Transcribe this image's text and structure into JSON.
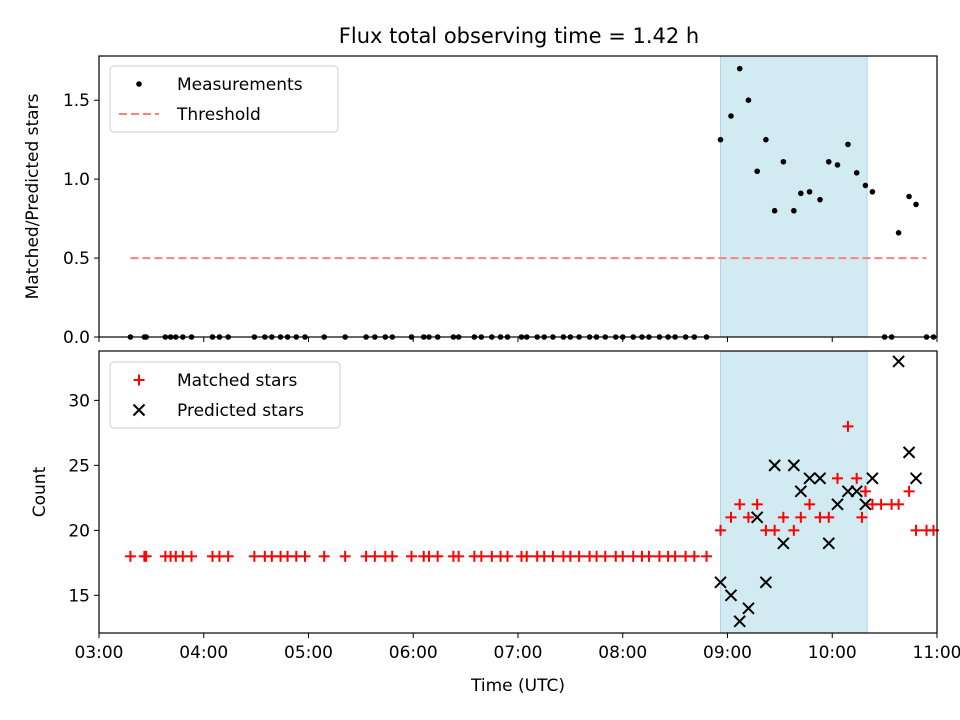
{
  "title": "Flux total observing time = 1.42 h",
  "colors": {
    "shade": "#add8e6",
    "measure": "#000000",
    "threshold": "#ff7f7f",
    "matched": "#ff0000",
    "predicted": "#000000"
  },
  "chart_data": [
    {
      "type": "scatter",
      "ylabel": "Matched/Predicted stars",
      "xlim": [
        "03:00",
        "11:00"
      ],
      "ylim": [
        0,
        1.78
      ],
      "yticks": [
        "0.0",
        "0.5",
        "1.0",
        "1.5"
      ],
      "shaded_span": [
        "08:56",
        "10:20"
      ],
      "legend": {
        "placement": "upper left",
        "entries": [
          "Measurements",
          "Threshold"
        ]
      },
      "series": [
        {
          "name": "Measurements",
          "marker": "dot",
          "points": [
            [
              "03:18",
              0
            ],
            [
              "03:26",
              0
            ],
            [
              "03:27",
              0
            ],
            [
              "03:38",
              0
            ],
            [
              "03:41",
              0
            ],
            [
              "03:44",
              0
            ],
            [
              "03:48",
              0
            ],
            [
              "03:53",
              0
            ],
            [
              "04:05",
              0
            ],
            [
              "04:09",
              0
            ],
            [
              "04:14",
              0
            ],
            [
              "04:29",
              0
            ],
            [
              "04:35",
              0
            ],
            [
              "04:39",
              0
            ],
            [
              "04:44",
              0
            ],
            [
              "04:48",
              0
            ],
            [
              "04:53",
              0
            ],
            [
              "04:58",
              0
            ],
            [
              "05:09",
              0
            ],
            [
              "05:21",
              0
            ],
            [
              "05:33",
              0
            ],
            [
              "05:38",
              0
            ],
            [
              "05:44",
              0
            ],
            [
              "05:48",
              0
            ],
            [
              "05:59",
              0
            ],
            [
              "06:06",
              0
            ],
            [
              "06:09",
              0
            ],
            [
              "06:14",
              0
            ],
            [
              "06:23",
              0
            ],
            [
              "06:26",
              0
            ],
            [
              "06:35",
              0
            ],
            [
              "06:39",
              0
            ],
            [
              "06:45",
              0
            ],
            [
              "06:50",
              0
            ],
            [
              "06:54",
              0
            ],
            [
              "07:02",
              0
            ],
            [
              "07:05",
              0
            ],
            [
              "07:11",
              0
            ],
            [
              "07:15",
              0
            ],
            [
              "07:20",
              0
            ],
            [
              "07:26",
              0
            ],
            [
              "07:30",
              0
            ],
            [
              "07:35",
              0
            ],
            [
              "07:41",
              0
            ],
            [
              "07:45",
              0
            ],
            [
              "07:50",
              0
            ],
            [
              "07:56",
              0
            ],
            [
              "08:00",
              0
            ],
            [
              "08:06",
              0
            ],
            [
              "08:11",
              0
            ],
            [
              "08:15",
              0
            ],
            [
              "08:21",
              0
            ],
            [
              "08:26",
              0
            ],
            [
              "08:30",
              0
            ],
            [
              "08:36",
              0
            ],
            [
              "08:41",
              0
            ],
            [
              "08:48",
              0
            ],
            [
              "08:56",
              1.25
            ],
            [
              "09:02",
              1.4
            ],
            [
              "09:07",
              1.7
            ],
            [
              "09:12",
              1.5
            ],
            [
              "09:17",
              1.05
            ],
            [
              "09:22",
              1.25
            ],
            [
              "09:27",
              0.8
            ],
            [
              "09:32",
              1.11
            ],
            [
              "09:38",
              0.8
            ],
            [
              "09:42",
              0.91
            ],
            [
              "09:47",
              0.92
            ],
            [
              "09:53",
              0.87
            ],
            [
              "09:58",
              1.11
            ],
            [
              "10:03",
              1.09
            ],
            [
              "10:09",
              1.22
            ],
            [
              "10:14",
              1.04
            ],
            [
              "10:19",
              0.96
            ],
            [
              "10:23",
              0.92
            ],
            [
              "10:30",
              0
            ],
            [
              "10:34",
              0
            ],
            [
              "10:38",
              0.66
            ],
            [
              "10:44",
              0.89
            ],
            [
              "10:48",
              0.84
            ],
            [
              "10:54",
              0
            ],
            [
              "10:58",
              0
            ]
          ]
        },
        {
          "name": "Threshold",
          "style": "dashed",
          "y": 0.5,
          "x": [
            "03:18",
            "10:54"
          ]
        }
      ]
    },
    {
      "type": "scatter",
      "xlabel": "Time (UTC)",
      "ylabel": "Count",
      "xlim": [
        "03:00",
        "11:00"
      ],
      "ylim": [
        12.1,
        33.8
      ],
      "yticks": [
        "15",
        "20",
        "25",
        "30"
      ],
      "xticks": [
        "03:00",
        "04:00",
        "05:00",
        "06:00",
        "07:00",
        "08:00",
        "09:00",
        "10:00",
        "11:00"
      ],
      "shaded_span": [
        "08:56",
        "10:20"
      ],
      "legend": {
        "placement": "upper left",
        "entries": [
          "Matched stars",
          "Predicted stars"
        ]
      },
      "series": [
        {
          "name": "Matched stars",
          "marker": "plus",
          "points": [
            [
              "03:18",
              18
            ],
            [
              "03:26",
              18
            ],
            [
              "03:27",
              18
            ],
            [
              "03:38",
              18
            ],
            [
              "03:41",
              18
            ],
            [
              "03:44",
              18
            ],
            [
              "03:48",
              18
            ],
            [
              "03:53",
              18
            ],
            [
              "04:05",
              18
            ],
            [
              "04:09",
              18
            ],
            [
              "04:14",
              18
            ],
            [
              "04:29",
              18
            ],
            [
              "04:35",
              18
            ],
            [
              "04:39",
              18
            ],
            [
              "04:44",
              18
            ],
            [
              "04:48",
              18
            ],
            [
              "04:53",
              18
            ],
            [
              "04:58",
              18
            ],
            [
              "05:09",
              18
            ],
            [
              "05:21",
              18
            ],
            [
              "05:33",
              18
            ],
            [
              "05:38",
              18
            ],
            [
              "05:44",
              18
            ],
            [
              "05:48",
              18
            ],
            [
              "05:59",
              18
            ],
            [
              "06:06",
              18
            ],
            [
              "06:09",
              18
            ],
            [
              "06:14",
              18
            ],
            [
              "06:23",
              18
            ],
            [
              "06:26",
              18
            ],
            [
              "06:35",
              18
            ],
            [
              "06:39",
              18
            ],
            [
              "06:45",
              18
            ],
            [
              "06:50",
              18
            ],
            [
              "06:54",
              18
            ],
            [
              "07:02",
              18
            ],
            [
              "07:05",
              18
            ],
            [
              "07:11",
              18
            ],
            [
              "07:15",
              18
            ],
            [
              "07:20",
              18
            ],
            [
              "07:26",
              18
            ],
            [
              "07:30",
              18
            ],
            [
              "07:35",
              18
            ],
            [
              "07:41",
              18
            ],
            [
              "07:45",
              18
            ],
            [
              "07:50",
              18
            ],
            [
              "07:56",
              18
            ],
            [
              "08:00",
              18
            ],
            [
              "08:06",
              18
            ],
            [
              "08:11",
              18
            ],
            [
              "08:15",
              18
            ],
            [
              "08:21",
              18
            ],
            [
              "08:26",
              18
            ],
            [
              "08:30",
              18
            ],
            [
              "08:36",
              18
            ],
            [
              "08:41",
              18
            ],
            [
              "08:48",
              18
            ],
            [
              "08:56",
              20
            ],
            [
              "09:02",
              21
            ],
            [
              "09:07",
              22
            ],
            [
              "09:12",
              21
            ],
            [
              "09:17",
              22
            ],
            [
              "09:22",
              20
            ],
            [
              "09:27",
              20
            ],
            [
              "09:32",
              21
            ],
            [
              "09:38",
              20
            ],
            [
              "09:42",
              21
            ],
            [
              "09:47",
              22
            ],
            [
              "09:53",
              21
            ],
            [
              "09:58",
              21
            ],
            [
              "10:03",
              24
            ],
            [
              "10:09",
              28
            ],
            [
              "10:14",
              24
            ],
            [
              "10:17",
              21
            ],
            [
              "10:19",
              23
            ],
            [
              "10:23",
              22
            ],
            [
              "10:28",
              22
            ],
            [
              "10:34",
              22
            ],
            [
              "10:38",
              22
            ],
            [
              "10:44",
              23
            ],
            [
              "10:48",
              20
            ],
            [
              "10:54",
              20
            ],
            [
              "10:58",
              20
            ]
          ]
        },
        {
          "name": "Predicted stars",
          "marker": "x",
          "points": [
            [
              "08:56",
              16
            ],
            [
              "09:02",
              15
            ],
            [
              "09:07",
              13
            ],
            [
              "09:12",
              14
            ],
            [
              "09:17",
              21
            ],
            [
              "09:22",
              16
            ],
            [
              "09:27",
              25
            ],
            [
              "09:32",
              19
            ],
            [
              "09:38",
              25
            ],
            [
              "09:42",
              23
            ],
            [
              "09:47",
              24
            ],
            [
              "09:53",
              24
            ],
            [
              "09:58",
              19
            ],
            [
              "10:03",
              22
            ],
            [
              "10:09",
              23
            ],
            [
              "10:14",
              23
            ],
            [
              "10:19",
              22
            ],
            [
              "10:23",
              24
            ],
            [
              "10:38",
              33
            ],
            [
              "10:44",
              26
            ],
            [
              "10:48",
              24
            ]
          ]
        }
      ]
    }
  ]
}
